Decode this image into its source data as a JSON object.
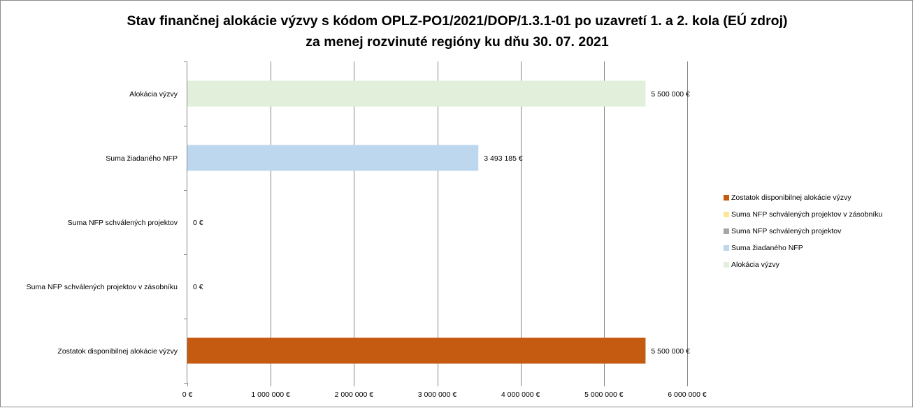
{
  "title": {
    "line1": "Stav finančnej alokácie výzvy s kódom OPLZ-PO1/2021/DOP/1.3.1-01 po uzavretí 1. a 2. kola (EÚ zdroj)",
    "line2": "za menej rozvinuté regióny ku dňu 30. 07. 2021"
  },
  "chart_data": {
    "type": "bar",
    "orientation": "horizontal",
    "title": "Stav finančnej alokácie výzvy s kódom OPLZ-PO1/2021/DOP/1.3.1-01 po uzavretí 1. a 2. kola (EÚ zdroj) za menej rozvinuté regióny ku dňu 30. 07. 2021",
    "categories": [
      "Alokácia výzvy",
      "Suma žiadaného NFP",
      "Suma NFP schválených projektov",
      "Suma NFP schválených projektov v zásobníku",
      "Zostatok disponibilnej alokácie výzvy"
    ],
    "values": [
      5500000,
      3493185,
      0,
      0,
      5500000
    ],
    "data_labels": [
      "5 500 000 €",
      "3 493 185 €",
      "0 €",
      "0 €",
      "5 500 000 €"
    ],
    "colors": [
      "#e2efda",
      "#bdd7ee",
      "#a5a5a5",
      "#ffe699",
      "#c55a11"
    ],
    "xlim": [
      0,
      6000000
    ],
    "x_ticks": [
      0,
      1000000,
      2000000,
      3000000,
      4000000,
      5000000,
      6000000
    ],
    "x_tick_labels": [
      "0 €",
      "1 000 000 €",
      "2 000 000 €",
      "3 000 000 €",
      "4 000 000 €",
      "5 000 000 €",
      "6 000 000 €"
    ],
    "grid": "vertical",
    "legend": {
      "placement": "right",
      "entries": [
        {
          "name": "Zostatok disponibilnej alokácie výzvy",
          "color": "#c55a11"
        },
        {
          "name": "Suma NFP schválených projektov v zásobníku",
          "color": "#ffe699"
        },
        {
          "name": "Suma NFP schválených projektov",
          "color": "#a5a5a5"
        },
        {
          "name": "Suma žiadaného NFP",
          "color": "#bdd7ee"
        },
        {
          "name": "Alokácia výzvy",
          "color": "#e2efda"
        }
      ]
    }
  }
}
